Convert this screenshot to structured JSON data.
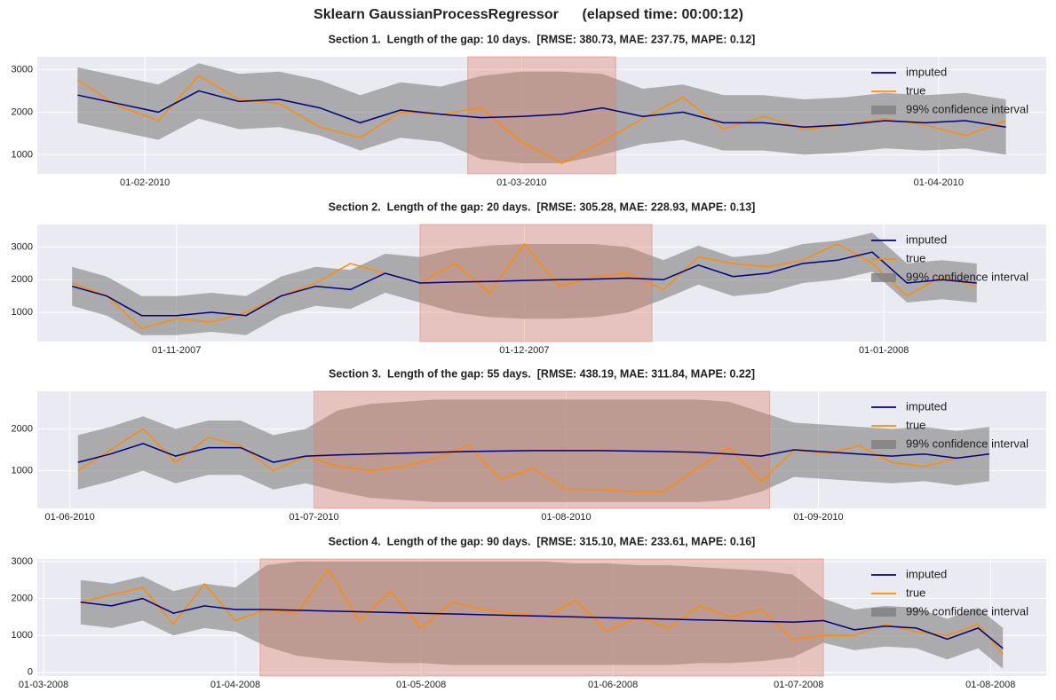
{
  "title": "Sklearn GaussianProcessRegressor      (elapsed time: 00:00:12)",
  "chart_data": [
    {
      "type": "line",
      "title": "Section 1.  Length of the gap: 10 days.  [RMSE: 380.73, MAE: 237.75, MAPE: 0.12]",
      "x": [
        "2010-01-27",
        "2010-01-30",
        "2010-02-02",
        "2010-02-05",
        "2010-02-08",
        "2010-02-11",
        "2010-02-14",
        "2010-02-17",
        "2010-02-20",
        "2010-02-23",
        "2010-02-26",
        "2010-03-01",
        "2010-03-04",
        "2010-03-07",
        "2010-03-10",
        "2010-03-13",
        "2010-03-16",
        "2010-03-19",
        "2010-03-22",
        "2010-03-25",
        "2010-03-28",
        "2010-03-31",
        "2010-04-03",
        "2010-04-06"
      ],
      "xlim": [
        "2010-01-24",
        "2010-04-09"
      ],
      "xticks": [
        {
          "value": "2010-02-01",
          "label": "01-02-2010"
        },
        {
          "value": "2010-03-01",
          "label": "01-03-2010"
        },
        {
          "value": "2010-04-01",
          "label": "01-04-2010"
        }
      ],
      "ylim": [
        550,
        3300
      ],
      "yticks": [
        1000,
        2000,
        3000
      ],
      "gap": [
        "2010-02-25",
        "2010-03-08"
      ],
      "gap_color": "#e07a5f",
      "series": [
        {
          "name": "imputed",
          "color": "#000080",
          "values": [
            2400,
            2200,
            2000,
            2500,
            2250,
            2300,
            2100,
            1750,
            2050,
            1950,
            1870,
            1900,
            1950,
            2100,
            1900,
            2000,
            1750,
            1750,
            1650,
            1700,
            1800,
            1750,
            1800,
            1650
          ]
        },
        {
          "name": "true",
          "color": "#ff8c00",
          "values": [
            2750,
            2150,
            1800,
            2850,
            2300,
            2200,
            1650,
            1400,
            2000,
            1950,
            2100,
            1300,
            800,
            1300,
            1850,
            2350,
            1600,
            1900,
            1600,
            1700,
            1850,
            1700,
            1450,
            1800
          ]
        }
      ],
      "band": {
        "name": "99% confidence interval",
        "color": "#808080",
        "upper": [
          3050,
          2850,
          2650,
          3150,
          2900,
          2950,
          2750,
          2400,
          2700,
          2600,
          2850,
          2950,
          2950,
          2900,
          2550,
          2650,
          2400,
          2400,
          2300,
          2350,
          2450,
          2400,
          2450,
          2300
        ],
        "lower": [
          1750,
          1550,
          1350,
          1850,
          1600,
          1650,
          1450,
          1100,
          1400,
          1300,
          900,
          800,
          800,
          1000,
          1250,
          1350,
          1100,
          1100,
          1000,
          1050,
          1150,
          1100,
          1150,
          1000
        ]
      },
      "grid": true,
      "legend": "upper right"
    },
    {
      "type": "line",
      "title": "Section 2.  Length of the gap: 20 days.  [RMSE: 305.28, MAE: 228.93, MAPE: 0.13]",
      "x": [
        "2007-10-23",
        "2007-10-26",
        "2007-10-29",
        "2007-11-01",
        "2007-11-04",
        "2007-11-07",
        "2007-11-10",
        "2007-11-13",
        "2007-11-16",
        "2007-11-19",
        "2007-11-22",
        "2007-11-25",
        "2007-11-28",
        "2007-12-01",
        "2007-12-04",
        "2007-12-07",
        "2007-12-10",
        "2007-12-13",
        "2007-12-16",
        "2007-12-19",
        "2007-12-22",
        "2007-12-25",
        "2007-12-28",
        "2007-12-31",
        "2008-01-03",
        "2008-01-06",
        "2008-01-09"
      ],
      "xlim": [
        "2007-10-20",
        "2008-01-15"
      ],
      "xticks": [
        {
          "value": "2007-11-01",
          "label": "01-11-2007"
        },
        {
          "value": "2007-12-01",
          "label": "01-12-2007"
        },
        {
          "value": "2008-01-01",
          "label": "01-01-2008"
        }
      ],
      "ylim": [
        100,
        3700
      ],
      "yticks": [
        1000,
        2000,
        3000
      ],
      "gap": [
        "2007-11-22",
        "2007-12-12"
      ],
      "gap_color": "#e07a5f",
      "series": [
        {
          "name": "imputed",
          "color": "#000080",
          "values": [
            1800,
            1500,
            900,
            900,
            1000,
            900,
            1500,
            1800,
            1700,
            2200,
            1900,
            1930,
            1950,
            1980,
            2000,
            2020,
            2050,
            2000,
            2450,
            2100,
            2200,
            2500,
            2600,
            2850,
            1900,
            2000,
            1900
          ]
        },
        {
          "name": "true",
          "color": "#ff8c00",
          "values": [
            1900,
            1500,
            500,
            800,
            700,
            1000,
            1500,
            1900,
            2500,
            2200,
            1900,
            2500,
            1600,
            3100,
            1800,
            2100,
            2200,
            1700,
            2700,
            2500,
            2400,
            2600,
            3100,
            2500,
            1500,
            2100,
            1800
          ]
        }
      ],
      "band": {
        "name": "99% confidence interval",
        "color": "#808080",
        "upper": [
          2400,
          2100,
          1500,
          1500,
          1600,
          1500,
          2100,
          2400,
          2300,
          2800,
          2700,
          2950,
          3050,
          3100,
          3100,
          3100,
          3000,
          2600,
          3050,
          2700,
          2800,
          3100,
          3200,
          3450,
          2500,
          2600,
          2500
        ],
        "lower": [
          1200,
          900,
          300,
          300,
          400,
          300,
          900,
          1200,
          1100,
          1600,
          1300,
          1000,
          850,
          800,
          800,
          850,
          1000,
          1400,
          1850,
          1500,
          1600,
          1900,
          2000,
          2250,
          1300,
          1400,
          1300
        ]
      },
      "grid": true,
      "legend": "upper right"
    },
    {
      "type": "line",
      "title": "Section 3.  Length of the gap: 55 days.  [RMSE: 438.19, MAE: 311.84, MAPE: 0.22]",
      "x": [
        "2010-06-02",
        "2010-06-06",
        "2010-06-10",
        "2010-06-14",
        "2010-06-18",
        "2010-06-22",
        "2010-06-26",
        "2010-06-30",
        "2010-07-04",
        "2010-07-08",
        "2010-07-12",
        "2010-07-16",
        "2010-07-20",
        "2010-07-24",
        "2010-07-28",
        "2010-08-01",
        "2010-08-05",
        "2010-08-09",
        "2010-08-13",
        "2010-08-17",
        "2010-08-21",
        "2010-08-25",
        "2010-08-29",
        "2010-09-02",
        "2010-09-06",
        "2010-09-10",
        "2010-09-14",
        "2010-09-18",
        "2010-09-22"
      ],
      "xlim": [
        "2010-05-28",
        "2010-09-29"
      ],
      "xticks": [
        {
          "value": "2010-06-01",
          "label": "01-06-2010"
        },
        {
          "value": "2010-07-01",
          "label": "01-07-2010"
        },
        {
          "value": "2010-08-01",
          "label": "01-08-2010"
        },
        {
          "value": "2010-09-01",
          "label": "01-09-2010"
        }
      ],
      "ylim": [
        100,
        2900
      ],
      "yticks": [
        1000,
        2000
      ],
      "gap": [
        "2010-07-01",
        "2010-08-26"
      ],
      "gap_color": "#e07a5f",
      "series": [
        {
          "name": "imputed",
          "color": "#000080",
          "values": [
            1200,
            1400,
            1650,
            1350,
            1550,
            1550,
            1200,
            1350,
            1380,
            1400,
            1420,
            1440,
            1460,
            1470,
            1480,
            1480,
            1480,
            1470,
            1460,
            1440,
            1400,
            1350,
            1500,
            1450,
            1400,
            1350,
            1400,
            1300,
            1400
          ]
        },
        {
          "name": "true",
          "color": "#ff8c00",
          "values": [
            1000,
            1500,
            2000,
            1200,
            1800,
            1600,
            1000,
            1350,
            1100,
            1000,
            1100,
            1300,
            1600,
            800,
            1050,
            550,
            550,
            500,
            500,
            1050,
            1550,
            750,
            1500,
            1400,
            1600,
            1200,
            1100,
            1300,
            1400
          ]
        }
      ],
      "band": {
        "name": "99% confidence interval",
        "color": "#808080",
        "upper": [
          1850,
          2050,
          2300,
          2000,
          2200,
          2200,
          1850,
          2000,
          2450,
          2600,
          2650,
          2700,
          2700,
          2700,
          2700,
          2700,
          2700,
          2700,
          2700,
          2700,
          2650,
          2400,
          2150,
          2100,
          2050,
          2000,
          2050,
          1950,
          2050
        ],
        "lower": [
          550,
          750,
          1000,
          700,
          900,
          900,
          550,
          700,
          500,
          350,
          300,
          250,
          250,
          250,
          250,
          250,
          250,
          250,
          250,
          250,
          300,
          500,
          850,
          800,
          750,
          700,
          750,
          650,
          750
        ]
      },
      "grid": true,
      "legend": "upper right"
    },
    {
      "type": "line",
      "title": "Section 4.  Length of the gap: 90 days.  [RMSE: 315.10, MAE: 233.61, MAPE: 0.16]",
      "x": [
        "2008-03-07",
        "2008-03-12",
        "2008-03-17",
        "2008-03-22",
        "2008-03-27",
        "2008-04-01",
        "2008-04-06",
        "2008-04-11",
        "2008-04-16",
        "2008-04-21",
        "2008-04-26",
        "2008-05-01",
        "2008-05-06",
        "2008-05-11",
        "2008-05-16",
        "2008-05-21",
        "2008-05-26",
        "2008-05-31",
        "2008-06-05",
        "2008-06-10",
        "2008-06-15",
        "2008-06-20",
        "2008-06-25",
        "2008-06-30",
        "2008-07-05",
        "2008-07-10",
        "2008-07-15",
        "2008-07-20",
        "2008-07-25",
        "2008-07-30",
        "2008-08-03"
      ],
      "xlim": [
        "2008-02-29",
        "2008-08-10"
      ],
      "xticks": [
        {
          "value": "2008-03-01",
          "label": "01-03-2008"
        },
        {
          "value": "2008-04-01",
          "label": "01-04-2008"
        },
        {
          "value": "2008-05-01",
          "label": "01-05-2008"
        },
        {
          "value": "2008-06-01",
          "label": "01-06-2008"
        },
        {
          "value": "2008-07-01",
          "label": "01-07-2008"
        },
        {
          "value": "2008-08-01",
          "label": "01-08-2008"
        }
      ],
      "ylim": [
        -100,
        3070
      ],
      "yticks": [
        0,
        1000,
        2000,
        3000
      ],
      "gap": [
        "2008-04-05",
        "2008-07-05"
      ],
      "gap_color": "#e07a5f",
      "series": [
        {
          "name": "imputed",
          "color": "#000080",
          "values": [
            1900,
            1800,
            2000,
            1600,
            1800,
            1700,
            1700,
            1680,
            1660,
            1640,
            1620,
            1600,
            1580,
            1560,
            1540,
            1520,
            1500,
            1480,
            1460,
            1440,
            1420,
            1400,
            1380,
            1360,
            1400,
            1150,
            1250,
            1200,
            900,
            1200,
            650
          ]
        },
        {
          "name": "true",
          "color": "#ff8c00",
          "values": [
            1900,
            2100,
            2300,
            1300,
            2400,
            1400,
            1700,
            1600,
            2800,
            1400,
            2200,
            1200,
            1900,
            1700,
            1600,
            1500,
            1950,
            1100,
            1500,
            1200,
            1800,
            1500,
            1700,
            900,
            1000,
            1000,
            1300,
            1100,
            1000,
            1300,
            500
          ]
        }
      ],
      "band": {
        "name": "99% confidence interval",
        "color": "#808080",
        "upper": [
          2500,
          2400,
          2600,
          2200,
          2400,
          2300,
          2900,
          3000,
          3000,
          3000,
          3000,
          3000,
          3000,
          3000,
          3000,
          3000,
          2950,
          2950,
          2900,
          2900,
          2850,
          2800,
          2750,
          2650,
          2000,
          1700,
          1800,
          1750,
          1450,
          1750,
          1200
        ],
        "lower": [
          1300,
          1200,
          1400,
          1000,
          1200,
          1100,
          700,
          450,
          350,
          300,
          250,
          250,
          200,
          200,
          200,
          200,
          200,
          200,
          200,
          200,
          250,
          250,
          300,
          400,
          800,
          600,
          700,
          650,
          350,
          650,
          100
        ]
      },
      "grid": true,
      "legend": "upper right"
    }
  ]
}
